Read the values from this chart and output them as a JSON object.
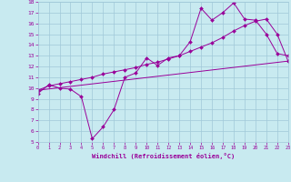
{
  "title": "",
  "xlabel": "Windchill (Refroidissement éolien,°C)",
  "xlim": [
    0,
    23
  ],
  "ylim": [
    5,
    18
  ],
  "yticks": [
    5,
    6,
    7,
    8,
    9,
    10,
    11,
    12,
    13,
    14,
    15,
    16,
    17,
    18
  ],
  "xticks": [
    0,
    1,
    2,
    3,
    4,
    5,
    6,
    7,
    8,
    9,
    10,
    11,
    12,
    13,
    14,
    15,
    16,
    17,
    18,
    19,
    20,
    21,
    22,
    23
  ],
  "bg_color": "#c8eaf0",
  "grid_color": "#a0c8d8",
  "line_color": "#990099",
  "line1_x": [
    0,
    1,
    2,
    3,
    4,
    5,
    6,
    7,
    8,
    9,
    10,
    11,
    12,
    13,
    14,
    15,
    16,
    17,
    18,
    19,
    20,
    21,
    22,
    23
  ],
  "line1_y": [
    9.5,
    10.3,
    10.0,
    9.9,
    9.2,
    5.3,
    6.4,
    8.0,
    11.0,
    11.4,
    12.8,
    12.1,
    12.8,
    13.0,
    14.3,
    17.4,
    16.3,
    17.0,
    17.9,
    16.4,
    16.3,
    15.0,
    13.2,
    13.0
  ],
  "line2_x": [
    0,
    1,
    2,
    3,
    4,
    5,
    6,
    7,
    8,
    9,
    10,
    11,
    12,
    13,
    14,
    15,
    16,
    17,
    18,
    19,
    20,
    21,
    22,
    23
  ],
  "line2_y": [
    9.8,
    10.2,
    10.4,
    10.6,
    10.8,
    11.0,
    11.3,
    11.5,
    11.7,
    11.9,
    12.2,
    12.4,
    12.7,
    13.0,
    13.4,
    13.8,
    14.2,
    14.7,
    15.3,
    15.8,
    16.2,
    16.4,
    15.0,
    12.5
  ],
  "line3_x": [
    0,
    23
  ],
  "line3_y": [
    9.8,
    12.5
  ],
  "markersize": 2.0
}
